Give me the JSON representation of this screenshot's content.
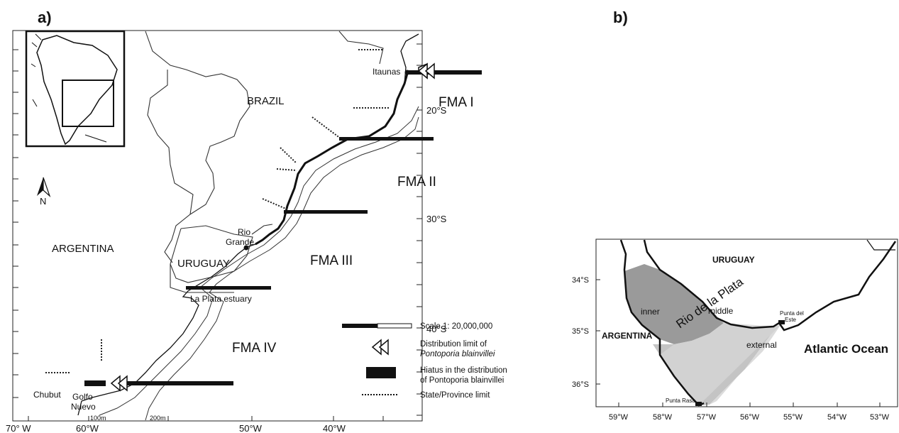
{
  "panels": {
    "a": "a)",
    "b": "b)"
  },
  "map_a": {
    "countries": {
      "brazil": "BRAZIL",
      "argentina": "ARGENTINA",
      "uruguay": "URUGUAY"
    },
    "areas": [
      "FMA I",
      "FMA II",
      "FMA III",
      "FMA IV"
    ],
    "places": {
      "itaunas": "Itaunas",
      "rio_grande_1": "Rio",
      "rio_grande_2": "Grande",
      "la_plata": "La Plata estuary",
      "chubut": "Chubut",
      "golfo_1": "Golfo",
      "golfo_2": "Nuevo"
    },
    "isobaths": [
      "100m",
      "200m"
    ],
    "north": "N",
    "lat_ticks": [
      "20°S",
      "30°S",
      "40°S"
    ],
    "lon_ticks": [
      "70° W",
      "60°W",
      "50°W",
      "40°W"
    ],
    "legend": {
      "scale": "Scale 1: 20,000,000",
      "dist_1": "Distribution limit of",
      "dist_2": "Pontoporia blainvillei",
      "hiatus_1": "Hiatus in the distribution",
      "hiatus_2": "of Pontoporia blainvillei",
      "state": "State/Province limit"
    }
  },
  "map_b": {
    "countries": {
      "uruguay": "URUGUAY",
      "argentina": "ARGENTINA"
    },
    "ocean": "Atlantic Ocean",
    "river": "Rio de la Plata",
    "zones": {
      "inner": "inner",
      "middle": "middle",
      "external": "external"
    },
    "places": {
      "punta_este_1": "Punta del",
      "punta_este_2": "Este",
      "punta_rasa": "Punta Rasa"
    },
    "lat_ticks": [
      "34°S",
      "35°S",
      "36°S"
    ],
    "lon_ticks": [
      "59°W",
      "58°W",
      "57°W",
      "56°W",
      "55°W",
      "54°W",
      "53°W"
    ],
    "zone_colors": {
      "inner": "#9a9a9a",
      "middle": "#c4c4c4",
      "external": "#dcdcdc"
    }
  }
}
